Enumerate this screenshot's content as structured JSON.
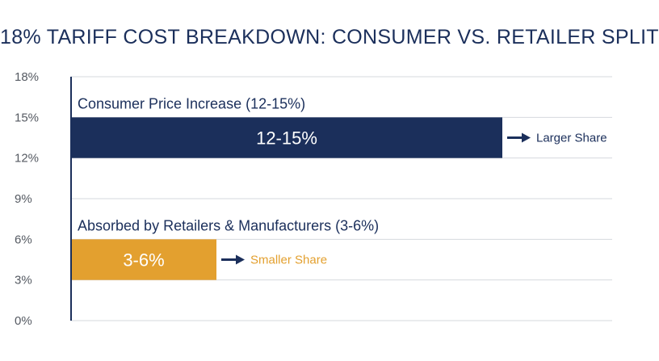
{
  "chart_data": {
    "type": "bar",
    "orientation": "horizontal",
    "title": "18% TARIFF COST BREAKDOWN: CONSUMER VS. RETAILER SPLIT",
    "xlabel": "",
    "ylabel": "",
    "ylim": [
      0,
      18
    ],
    "yticks": [
      "0%",
      "3%",
      "6%",
      "9%",
      "12%",
      "15%",
      "18%"
    ],
    "grid": true,
    "series": [
      {
        "category": "Consumer Price Increase (12-15%)",
        "range": [
          12,
          15
        ],
        "value_label": "12-15%",
        "annotation": "Larger Share",
        "color": "#1b2f5b",
        "annotation_color": "#1b2f5b"
      },
      {
        "category": "Absorbed by Retailers & Manufacturers (3-6%)",
        "range": [
          3,
          6
        ],
        "value_label": "3-6%",
        "annotation": "Smaller Share",
        "color": "#e3a02f",
        "annotation_color": "#e3a02f"
      }
    ]
  }
}
